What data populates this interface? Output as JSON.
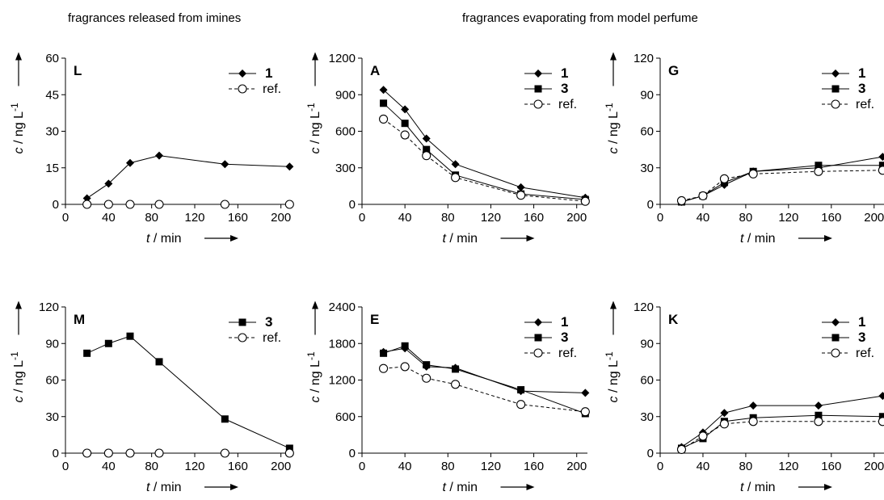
{
  "headings": {
    "left": "fragrances released from imines",
    "right": "fragrances evaporating from model perfume"
  },
  "chart_data": [
    {
      "type": "line",
      "panel_label": "L",
      "xlabel_var": "t",
      "xlabel_unit": " / min",
      "ylabel_var": "c",
      "ylabel_unit": " / ng L",
      "ylabel_exp": "-1",
      "xlim": [
        0,
        210
      ],
      "ylim": [
        0,
        60
      ],
      "xticks": [
        0,
        40,
        80,
        120,
        160,
        200
      ],
      "yticks": [
        0,
        15,
        30,
        45,
        60
      ],
      "legend_position": "top-right",
      "grid": false,
      "series": [
        {
          "name": "1",
          "marker": "diamond",
          "dash": false,
          "x": [
            20,
            40,
            60,
            87,
            148,
            208
          ],
          "y": [
            2.5,
            8.5,
            17,
            20,
            16.5,
            15.5
          ]
        },
        {
          "name": "ref.",
          "marker": "circle",
          "dash": true,
          "x": [
            20,
            40,
            60,
            87,
            148,
            208
          ],
          "y": [
            0,
            0,
            0,
            0,
            0,
            0
          ]
        }
      ]
    },
    {
      "type": "line",
      "panel_label": "A",
      "xlabel_var": "t",
      "xlabel_unit": " / min",
      "ylabel_var": "c",
      "ylabel_unit": " / ng L",
      "ylabel_exp": "-1",
      "xlim": [
        0,
        210
      ],
      "ylim": [
        0,
        1200
      ],
      "xticks": [
        0,
        40,
        80,
        120,
        160,
        200
      ],
      "yticks": [
        0,
        300,
        600,
        900,
        1200
      ],
      "legend_position": "top-right",
      "grid": false,
      "series": [
        {
          "name": "1",
          "marker": "diamond",
          "dash": false,
          "x": [
            20,
            40,
            60,
            87,
            148,
            208
          ],
          "y": [
            940,
            780,
            540,
            330,
            140,
            55
          ]
        },
        {
          "name": "3",
          "marker": "square",
          "dash": false,
          "x": [
            20,
            40,
            60,
            87,
            148,
            208
          ],
          "y": [
            830,
            665,
            450,
            240,
            85,
            40
          ]
        },
        {
          "name": "ref.",
          "marker": "circle",
          "dash": true,
          "x": [
            20,
            40,
            60,
            87,
            148,
            208
          ],
          "y": [
            700,
            570,
            400,
            220,
            75,
            25
          ]
        }
      ]
    },
    {
      "type": "line",
      "panel_label": "G",
      "xlabel_var": "t",
      "xlabel_unit": " / min",
      "ylabel_var": "c",
      "ylabel_unit": " / ng L",
      "ylabel_exp": "-1",
      "xlim": [
        0,
        210
      ],
      "ylim": [
        0,
        120
      ],
      "xticks": [
        0,
        40,
        80,
        120,
        160,
        200
      ],
      "yticks": [
        0,
        30,
        60,
        90,
        120
      ],
      "legend_position": "top-right",
      "grid": false,
      "series": [
        {
          "name": "1",
          "marker": "diamond",
          "dash": false,
          "x": [
            20,
            40,
            60,
            87,
            148,
            208
          ],
          "y": [
            2,
            7,
            16,
            27,
            30,
            39
          ]
        },
        {
          "name": "3",
          "marker": "square",
          "dash": false,
          "x": [
            20,
            40,
            60,
            87,
            148,
            208
          ],
          "y": [
            2,
            7,
            18,
            27,
            32,
            32
          ]
        },
        {
          "name": "ref.",
          "marker": "circle",
          "dash": true,
          "x": [
            20,
            40,
            60,
            87,
            148,
            208
          ],
          "y": [
            3,
            7,
            21,
            25,
            27,
            28
          ]
        }
      ]
    },
    {
      "type": "line",
      "panel_label": "M",
      "xlabel_var": "t",
      "xlabel_unit": " / min",
      "ylabel_var": "c",
      "ylabel_unit": " / ng L",
      "ylabel_exp": "-1",
      "xlim": [
        0,
        210
      ],
      "ylim": [
        0,
        120
      ],
      "xticks": [
        0,
        40,
        80,
        120,
        160,
        200
      ],
      "yticks": [
        0,
        30,
        60,
        90,
        120
      ],
      "legend_position": "top-right",
      "grid": false,
      "series": [
        {
          "name": "3",
          "marker": "square",
          "dash": false,
          "x": [
            20,
            40,
            60,
            87,
            148,
            208
          ],
          "y": [
            82,
            90,
            96,
            75,
            28,
            4
          ]
        },
        {
          "name": "ref.",
          "marker": "circle",
          "dash": true,
          "x": [
            20,
            40,
            60,
            87,
            148,
            208
          ],
          "y": [
            0,
            0,
            0,
            0,
            0,
            0
          ]
        }
      ]
    },
    {
      "type": "line",
      "panel_label": "E",
      "xlabel_var": "t",
      "xlabel_unit": " / min",
      "ylabel_var": "c",
      "ylabel_unit": " / ng L",
      "ylabel_exp": "-1",
      "xlim": [
        0,
        210
      ],
      "ylim": [
        0,
        2400
      ],
      "xticks": [
        0,
        40,
        80,
        120,
        160,
        200
      ],
      "yticks": [
        0,
        600,
        1200,
        1800,
        2400
      ],
      "legend_position": "top-right",
      "grid": false,
      "series": [
        {
          "name": "1",
          "marker": "diamond",
          "dash": false,
          "x": [
            20,
            40,
            60,
            87,
            148,
            208
          ],
          "y": [
            1660,
            1720,
            1420,
            1400,
            1020,
            990
          ]
        },
        {
          "name": "3",
          "marker": "square",
          "dash": false,
          "x": [
            20,
            40,
            60,
            87,
            148,
            208
          ],
          "y": [
            1640,
            1760,
            1450,
            1380,
            1040,
            650
          ]
        },
        {
          "name": "ref.",
          "marker": "circle",
          "dash": true,
          "x": [
            20,
            40,
            60,
            87,
            148,
            208
          ],
          "y": [
            1390,
            1420,
            1230,
            1130,
            800,
            680
          ]
        }
      ]
    },
    {
      "type": "line",
      "panel_label": "K",
      "xlabel_var": "t",
      "xlabel_unit": " / min",
      "ylabel_var": "c",
      "ylabel_unit": " / ng L",
      "ylabel_exp": "-1",
      "xlim": [
        0,
        210
      ],
      "ylim": [
        0,
        120
      ],
      "xticks": [
        0,
        40,
        80,
        120,
        160,
        200
      ],
      "yticks": [
        0,
        30,
        60,
        90,
        120
      ],
      "legend_position": "top-right",
      "grid": false,
      "series": [
        {
          "name": "1",
          "marker": "diamond",
          "dash": false,
          "x": [
            20,
            40,
            60,
            87,
            148,
            208
          ],
          "y": [
            5,
            17,
            33,
            39,
            39,
            47
          ]
        },
        {
          "name": "3",
          "marker": "square",
          "dash": false,
          "x": [
            20,
            40,
            60,
            87,
            148,
            208
          ],
          "y": [
            4,
            12,
            26,
            29,
            31,
            30
          ]
        },
        {
          "name": "ref.",
          "marker": "circle",
          "dash": true,
          "x": [
            20,
            40,
            60,
            87,
            148,
            208
          ],
          "y": [
            3,
            14,
            24,
            26,
            26,
            26
          ]
        }
      ]
    }
  ]
}
